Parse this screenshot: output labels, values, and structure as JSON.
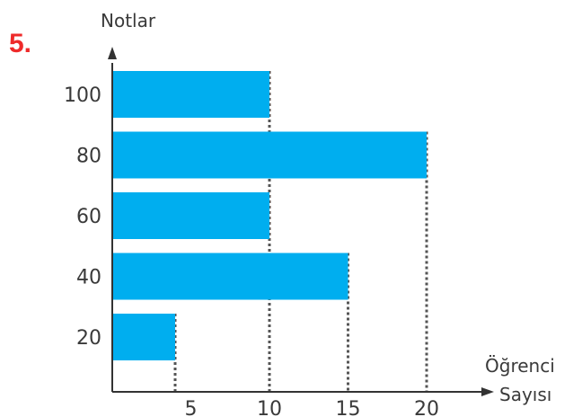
{
  "question": {
    "number": "5."
  },
  "chart_data": {
    "type": "bar",
    "orientation": "horizontal",
    "categories": [
      "100",
      "80",
      "60",
      "40",
      "20"
    ],
    "values": [
      10,
      20,
      10,
      15,
      4
    ],
    "ylabel": "Notlar",
    "xlabel_lines": [
      "Öğrenci",
      "Sayısı"
    ],
    "x_ticks": [
      "5",
      "10",
      "15",
      "20"
    ],
    "x_tick_values": [
      5,
      10,
      15,
      20
    ],
    "xlim": [
      0,
      20
    ],
    "grid": false,
    "dashed_guides": true,
    "bar_color": "#00aeef",
    "axis_color": "#333333",
    "guide_color": "#555555"
  }
}
